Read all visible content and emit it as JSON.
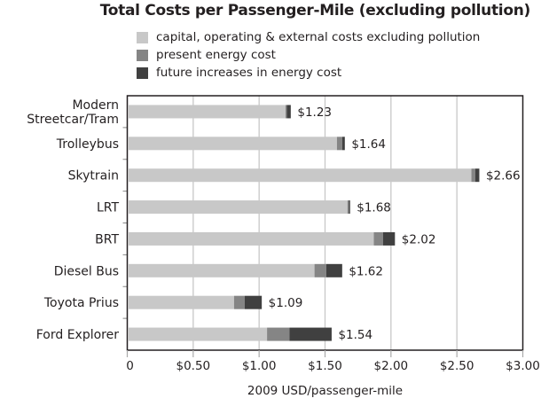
{
  "chart_data": {
    "type": "bar",
    "orientation": "horizontal",
    "stacked": true,
    "title": "Total Costs per Passenger-Mile (excluding pollution)",
    "xlabel": "2009 USD/passenger-mile",
    "ylabel": "",
    "xlim": [
      0,
      3.0
    ],
    "xticks": [
      0,
      0.5,
      1.0,
      1.5,
      2.0,
      2.5,
      3.0
    ],
    "xtick_labels": [
      "0",
      "$0.50",
      "$1.00",
      "$1.50",
      "$2.00",
      "$2.50",
      "$3.00"
    ],
    "grid": "vertical",
    "legend_position": "top",
    "categories": [
      [
        "Modern",
        "Streetcar/Tram"
      ],
      [
        "Trolleybus"
      ],
      [
        "Skytrain"
      ],
      [
        "LRT"
      ],
      [
        "BRT"
      ],
      [
        "Diesel Bus"
      ],
      [
        "Toyota Prius"
      ],
      [
        "Ford Explorer"
      ]
    ],
    "series": [
      {
        "name": "capital, operating & external costs excluding pollution",
        "color": "#c8c8c8",
        "values": [
          1.19,
          1.58,
          2.6,
          1.66,
          1.86,
          1.41,
          0.8,
          1.05
        ]
      },
      {
        "name": "present energy cost",
        "color": "#858585",
        "values": [
          0.01,
          0.04,
          0.03,
          0.01,
          0.07,
          0.09,
          0.08,
          0.17
        ]
      },
      {
        "name": "future increases in energy cost",
        "color": "#404040",
        "values": [
          0.03,
          0.02,
          0.03,
          0.01,
          0.09,
          0.12,
          0.13,
          0.32
        ]
      }
    ],
    "totals": [
      1.23,
      1.64,
      2.66,
      1.68,
      2.02,
      1.62,
      1.09,
      1.54
    ],
    "total_labels": [
      "$1.23",
      "$1.64",
      "$2.66",
      "$1.68",
      "$2.02",
      "$1.62",
      "$1.09",
      "$1.54"
    ]
  },
  "colors": {
    "grid": "#c8c8c8",
    "axis": "#231f20"
  }
}
